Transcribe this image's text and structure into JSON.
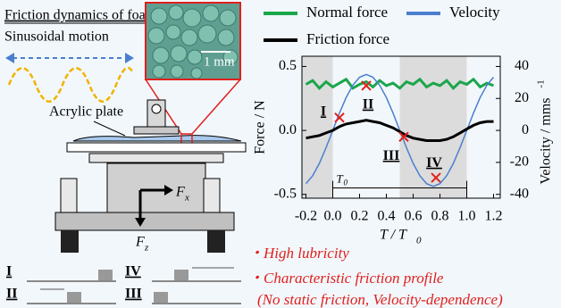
{
  "diagram": {
    "title": "Friction dynamics of foam",
    "motion": "Sinusoidal motion",
    "scale": "1 mm",
    "plate": "Acrylic plate",
    "fx": {
      "base": "F",
      "sub": "x"
    },
    "fz": {
      "base": "F",
      "sub": "z"
    },
    "phases": [
      "I",
      "IV",
      "II",
      "III"
    ]
  },
  "chart_data": {
    "type": "line",
    "x": [
      -0.2,
      -0.15,
      -0.1,
      -0.05,
      0,
      0.05,
      0.1,
      0.15,
      0.2,
      0.25,
      0.3,
      0.35,
      0.4,
      0.45,
      0.5,
      0.55,
      0.6,
      0.65,
      0.7,
      0.75,
      0.8,
      0.85,
      0.9,
      0.95,
      1.0,
      1.05,
      1.1,
      1.15,
      1.2
    ],
    "series": [
      {
        "name": "Normal force",
        "color": "#1aa64a",
        "values": [
          0.36,
          0.39,
          0.33,
          0.38,
          0.34,
          0.37,
          0.4,
          0.33,
          0.36,
          0.38,
          0.34,
          0.39,
          0.35,
          0.37,
          0.33,
          0.38,
          0.36,
          0.4,
          0.34,
          0.37,
          0.35,
          0.39,
          0.33,
          0.38,
          0.36,
          0.4,
          0.34,
          0.37,
          0.35
        ]
      },
      {
        "name": "Velocity",
        "color": "#4a7fcf",
        "axis": "y2",
        "values": [
          -33.3,
          -28.3,
          -20.6,
          -10.8,
          0,
          10.8,
          20.6,
          28.3,
          33.3,
          35,
          33.3,
          28.3,
          20.6,
          10.8,
          0,
          -10.8,
          -20.6,
          -28.3,
          -33.3,
          -35,
          -33.3,
          -28.3,
          -20.6,
          -10.8,
          0,
          10.8,
          20.6,
          28.3,
          33.3
        ]
      },
      {
        "name": "Friction force",
        "color": "#000000",
        "values": [
          -0.06,
          -0.05,
          -0.04,
          -0.02,
          0.0,
          0.03,
          0.05,
          0.06,
          0.07,
          0.08,
          0.07,
          0.06,
          0.04,
          0.02,
          -0.01,
          -0.04,
          -0.06,
          -0.07,
          -0.08,
          -0.08,
          -0.08,
          -0.07,
          -0.05,
          -0.02,
          0.01,
          0.04,
          0.06,
          0.07,
          0.07
        ]
      }
    ],
    "xlim": [
      -0.23,
      1.25
    ],
    "ylim": [
      -0.53,
      0.58
    ],
    "y2lim": [
      -42.4,
      46.4
    ],
    "xticks": [
      -0.2,
      {
        "value": 0,
        "label": "0.0"
      },
      0.2,
      0.4,
      0.6,
      0.8,
      {
        "value": 1,
        "label": "1.0"
      },
      1.2
    ],
    "yticks": [
      -0.5,
      {
        "value": 0,
        "label": "0.0"
      },
      0.5
    ],
    "y2ticks": [
      -40,
      -20,
      0,
      20,
      40
    ],
    "xlabel": {
      "text": "T / T",
      "sub": "0"
    },
    "ylabel": "Force / N",
    "y2label": {
      "text": "Velocity / mms",
      "sup": "-1"
    },
    "shaded": [
      [
        -0.23,
        0
      ],
      [
        0.5,
        1.0
      ]
    ],
    "period": {
      "start": 0,
      "end": 1.0,
      "y": -0.45,
      "text": "T",
      "sub": "0"
    },
    "markers": [
      {
        "label": "I",
        "x": 0.05,
        "y": 0.1
      },
      {
        "label": "II",
        "x": 0.25,
        "y": 0.35
      },
      {
        "label": "III",
        "x": 0.53,
        "y": -0.05
      },
      {
        "label": "IV",
        "x": 0.77,
        "y": -0.37
      }
    ]
  },
  "notes": [
    "・High lubricity",
    "・Characteristic friction profile",
    "(No static friction, Velocity-dependence)"
  ]
}
